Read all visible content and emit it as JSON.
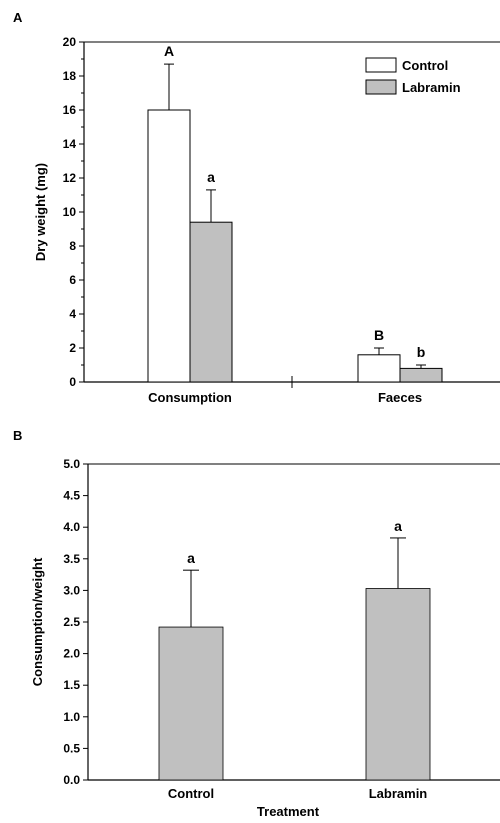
{
  "chart_data": [
    {
      "panel_label": "A",
      "type": "bar",
      "ylabel": "Dry weight (mg)",
      "xlabel": "",
      "ylim": [
        0,
        20
      ],
      "yticks": [
        0,
        2,
        4,
        6,
        8,
        10,
        12,
        14,
        16,
        18,
        20
      ],
      "categories": [
        "Consumption",
        "Faeces"
      ],
      "legend_position": "top-right",
      "series": [
        {
          "name": "Control",
          "color": "#ffffff",
          "values": [
            16.0,
            1.6
          ],
          "errors": [
            2.7,
            0.4
          ],
          "letters": [
            "A",
            "B"
          ]
        },
        {
          "name": "Labramin",
          "color": "#c0c0c0",
          "values": [
            9.4,
            0.8
          ],
          "errors": [
            1.9,
            0.2
          ],
          "letters": [
            "a",
            "b"
          ]
        }
      ]
    },
    {
      "panel_label": "B",
      "type": "bar",
      "ylabel": "Consumption/weight",
      "xlabel": "Treatment",
      "ylim": [
        0,
        5.0
      ],
      "yticks": [
        "0.0",
        "0.5",
        "1.0",
        "1.5",
        "2.0",
        "2.5",
        "3.0",
        "3.5",
        "4.0",
        "4.5",
        "5.0"
      ],
      "categories": [
        "Control",
        "Labramin"
      ],
      "color": "#c0c0c0",
      "values": [
        2.42,
        3.03
      ],
      "errors": [
        0.9,
        0.8
      ],
      "letters": [
        "a",
        "a"
      ]
    }
  ]
}
